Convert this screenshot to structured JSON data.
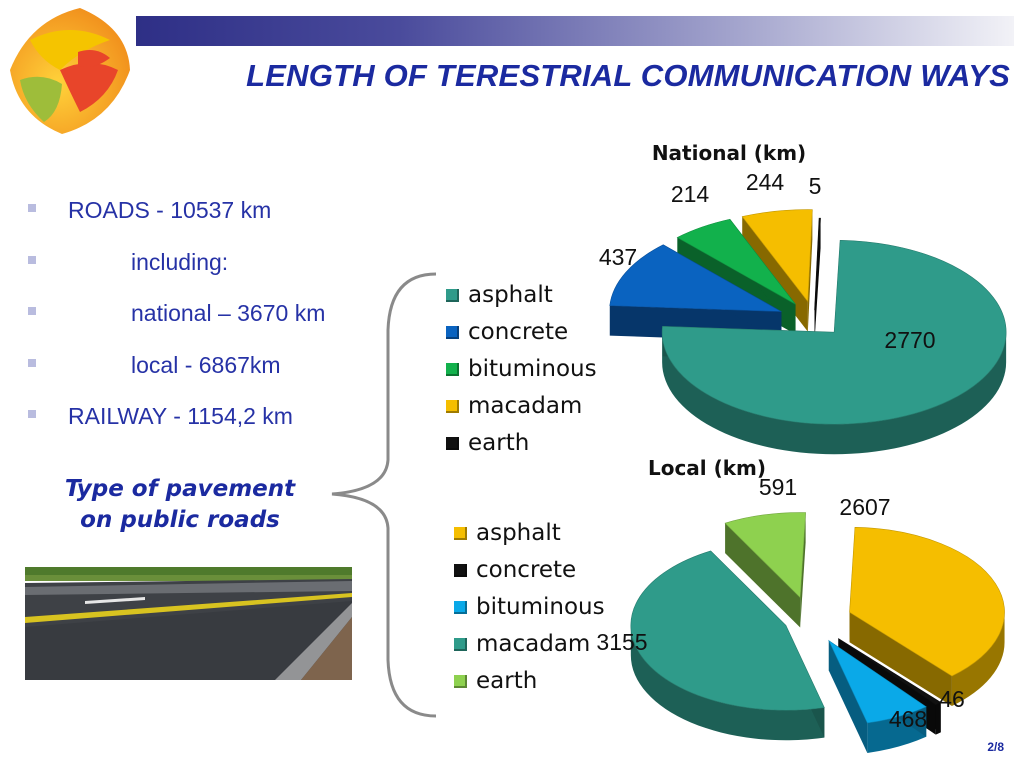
{
  "slide": {
    "title": "LENGTH OF TERESTRIAL COMMUNICATION WAYS",
    "page": "2/8",
    "colors": {
      "title": "#1b2aa0",
      "bar_start": "#2e2f86"
    }
  },
  "bullets": [
    {
      "text": "ROADS - 10537 km",
      "indent": false
    },
    {
      "text": "including:",
      "indent": true
    },
    {
      "text": "national – 3670 km",
      "indent": true
    },
    {
      "text": "local -  6867km",
      "indent": true
    },
    {
      "text": "RAILWAY  - 1154,2 km",
      "indent": false
    }
  ],
  "pavement_caption": {
    "line1": "Type of pavement",
    "line2": "on public roads"
  },
  "chart_data": [
    {
      "type": "pie",
      "title": "National (km)",
      "categories": [
        "asphalt",
        "concrete",
        "bituminous",
        "macadam",
        "earth"
      ],
      "values": [
        2770,
        437,
        214,
        244,
        5
      ],
      "colors": [
        "#2f9b8a",
        "#0a63c0",
        "#12b14c",
        "#f5be00",
        "#111111"
      ],
      "legend": "left"
    },
    {
      "type": "pie",
      "title": "Local (km)",
      "categories": [
        "asphalt",
        "concrete",
        "bituminous",
        "macadam",
        "earth"
      ],
      "values": [
        2607,
        46,
        468,
        3155,
        591
      ],
      "colors": [
        "#f5be00",
        "#111111",
        "#0aa9e8",
        "#2f9b8a",
        "#8ed14f"
      ],
      "legend": "left"
    }
  ]
}
